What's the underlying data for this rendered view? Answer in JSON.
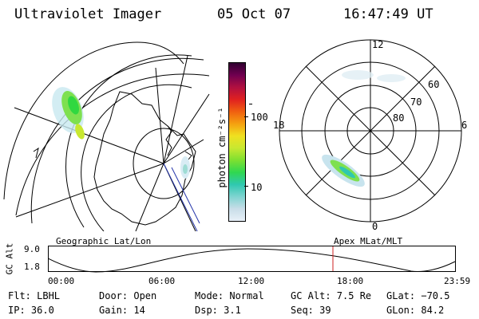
{
  "header": {
    "title": "Ultraviolet Imager",
    "date": "05 Oct 07",
    "time": "16:47:49 UT"
  },
  "colorbar": {
    "label": "photon cm⁻²s⁻¹",
    "ticks": [
      "100",
      "10"
    ]
  },
  "polar": {
    "mlt_labels": {
      "top": "12",
      "left": "18",
      "right": "6",
      "bottom": "0"
    },
    "lat_labels": [
      "60",
      "70",
      "80"
    ]
  },
  "timeline": {
    "left_label": "Geographic Lat/Lon",
    "right_label": "Apex MLat/MLT",
    "axis_title": "GC Alt",
    "y_ticks": [
      "9.0",
      "1.8"
    ],
    "x_ticks": [
      "00:00",
      "06:00",
      "12:00",
      "18:00",
      "23:59"
    ],
    "current_marker_color": "#cc2222"
  },
  "info": {
    "row1": {
      "flt": "Flt: LBHL",
      "door": "Door: Open",
      "mode": "Mode: Normal",
      "gcalt": "GC Alt: 7.5 Re",
      "glat": "GLat: −70.5"
    },
    "row2": {
      "ip": "IP: 36.0",
      "gain": "Gain: 14",
      "dsp": "Dsp:    3.1",
      "seq": "Seq: 39",
      "glon": "GLon:  84.2"
    }
  },
  "colors": {
    "colorbar": [
      "#e8f0f8",
      "#c8dde8",
      "#7ed4d0",
      "#2fc8b0",
      "#30d850",
      "#7ee030",
      "#c8e830",
      "#f0e020",
      "#f5a010",
      "#f06010",
      "#e02020",
      "#b01040",
      "#700050",
      "#300030"
    ]
  }
}
